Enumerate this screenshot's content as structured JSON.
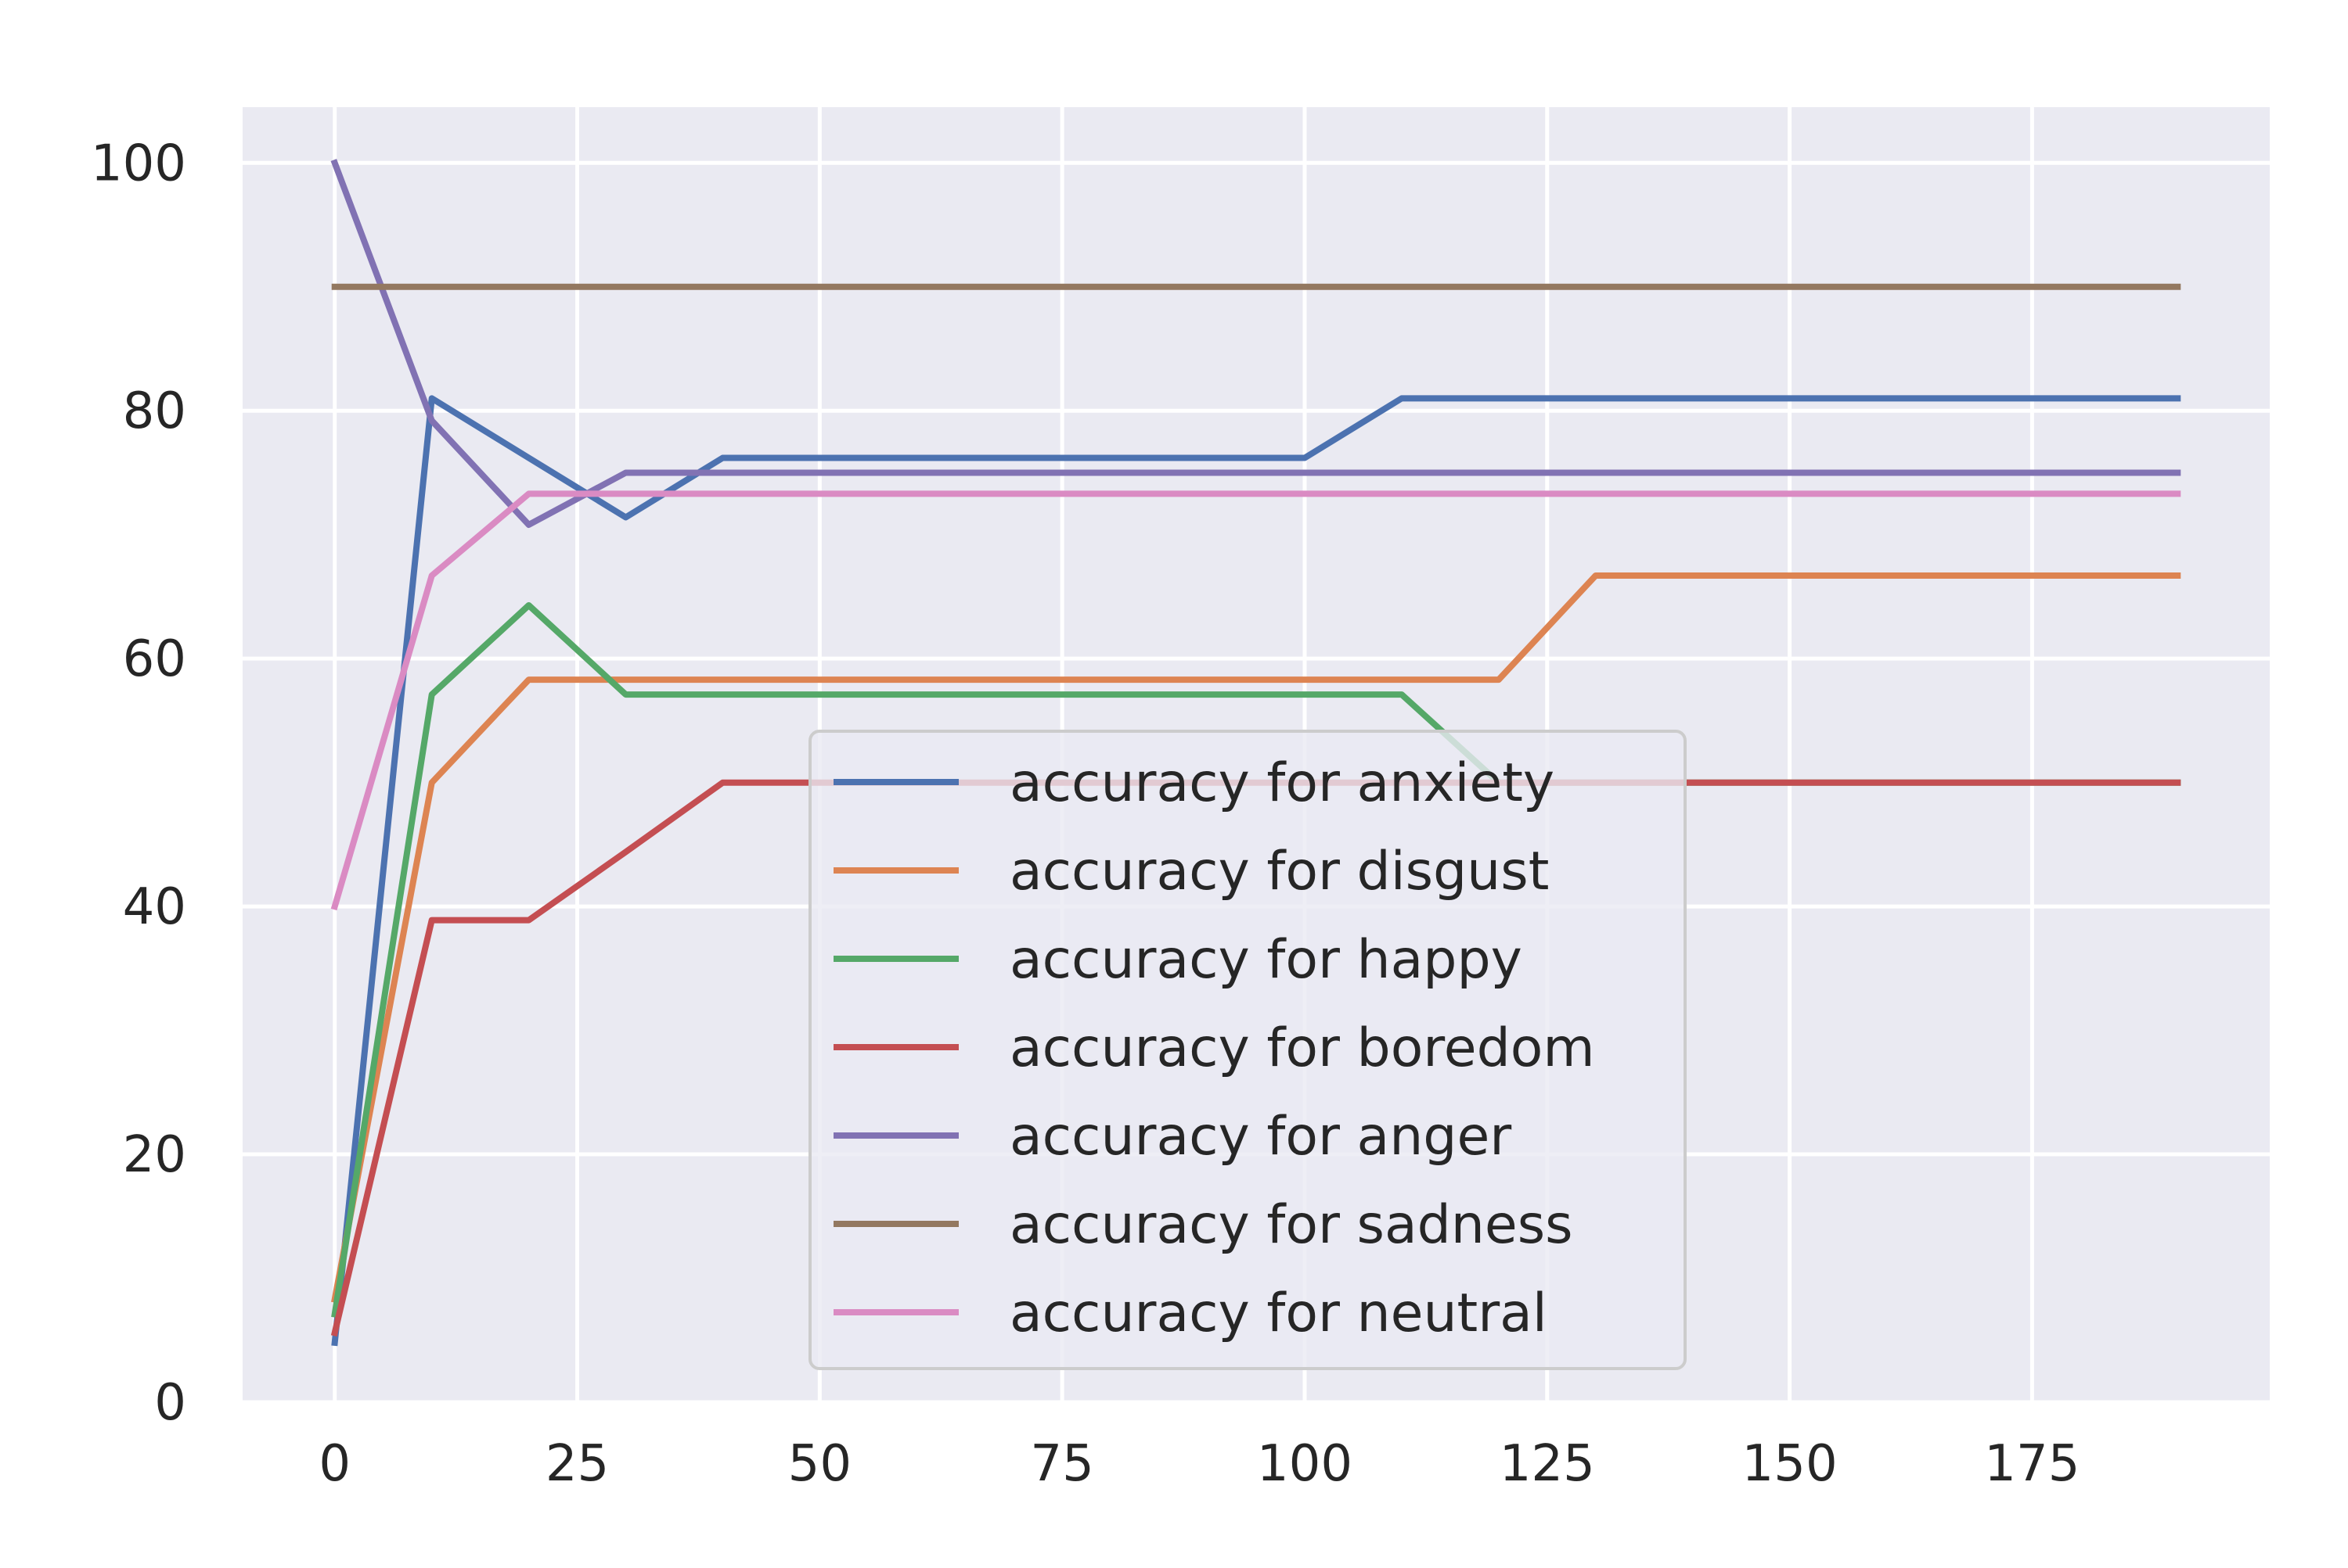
{
  "chart_data": {
    "type": "line",
    "title": "",
    "xlabel": "",
    "ylabel": "",
    "xlim": [
      -9.5,
      199.5
    ],
    "ylim": [
      0,
      104.5
    ],
    "xticks": [
      0,
      25,
      50,
      75,
      100,
      125,
      150,
      175
    ],
    "yticks": [
      0,
      20,
      40,
      60,
      80,
      100
    ],
    "grid": true,
    "legend_position": "lower-center",
    "x": [
      0,
      10,
      20,
      30,
      40,
      50,
      60,
      70,
      80,
      90,
      100,
      110,
      120,
      130,
      140,
      150,
      160,
      170,
      180,
      190
    ],
    "series": [
      {
        "name": "accuracy for anxiety",
        "color": "#4c72b0",
        "values": [
          4.8,
          81,
          76.2,
          71.4,
          76.2,
          76.2,
          76.2,
          76.2,
          76.2,
          76.2,
          76.2,
          81,
          81,
          81,
          81,
          81,
          81,
          81,
          81,
          81
        ]
      },
      {
        "name": "accuracy for disgust",
        "color": "#dd8452",
        "values": [
          8.3,
          50,
          58.3,
          58.3,
          58.3,
          58.3,
          58.3,
          58.3,
          58.3,
          58.3,
          58.3,
          58.3,
          58.3,
          66.7,
          66.7,
          66.7,
          66.7,
          66.7,
          66.7,
          66.7
        ]
      },
      {
        "name": "accuracy for happy",
        "color": "#55a868",
        "values": [
          7.1,
          57.1,
          64.3,
          57.1,
          57.1,
          57.1,
          57.1,
          57.1,
          57.1,
          57.1,
          57.1,
          57.1,
          50,
          50,
          50,
          50,
          50,
          50,
          50,
          50
        ]
      },
      {
        "name": "accuracy for boredom",
        "color": "#c44e52",
        "values": [
          5.6,
          38.9,
          38.9,
          44.4,
          50,
          50,
          50,
          50,
          50,
          50,
          50,
          50,
          50,
          50,
          50,
          50,
          50,
          50,
          50,
          50
        ]
      },
      {
        "name": "accuracy for anger",
        "color": "#8172b3",
        "values": [
          100,
          79.2,
          70.8,
          75,
          75,
          75,
          75,
          75,
          75,
          75,
          75,
          75,
          75,
          75,
          75,
          75,
          75,
          75,
          75,
          75
        ]
      },
      {
        "name": "accuracy for sadness",
        "color": "#937860",
        "values": [
          90,
          90,
          90,
          90,
          90,
          90,
          90,
          90,
          90,
          90,
          90,
          90,
          90,
          90,
          90,
          90,
          90,
          90,
          90,
          90
        ]
      },
      {
        "name": "accuracy for neutral",
        "color": "#da8bc3",
        "values": [
          40,
          66.7,
          73.3,
          73.3,
          73.3,
          73.3,
          73.3,
          73.3,
          73.3,
          73.3,
          73.3,
          73.3,
          73.3,
          73.3,
          73.3,
          73.3,
          73.3,
          73.3,
          73.3,
          73.3
        ]
      }
    ]
  }
}
